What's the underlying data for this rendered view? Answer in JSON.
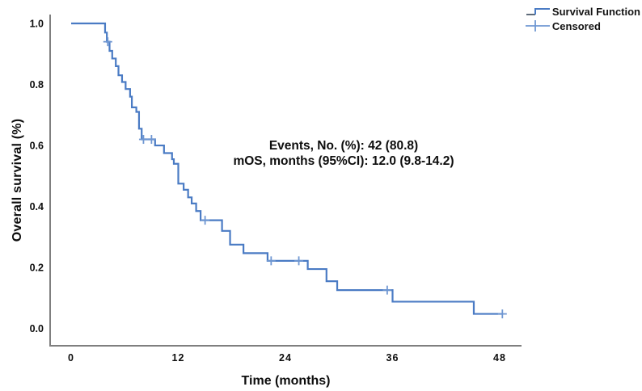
{
  "figure": {
    "ylabel": "Overall survival (%)",
    "xlabel": "Time (months)",
    "annotation": {
      "line1": "Events, No. (%): 42 (80.8)",
      "line2": "mOS, months (95%CI): 12.0 (9.8-14.2)"
    },
    "legend": {
      "survival_label": "Survival Function",
      "censored_label": "Censored"
    }
  },
  "chart_data": {
    "type": "line",
    "subtype": "kaplan-meier-step",
    "title": "",
    "xlabel": "Time (months)",
    "ylabel": "Overall survival (%)",
    "xlim": [
      0,
      48
    ],
    "ylim": [
      0.0,
      1.0
    ],
    "xticks": [
      "0",
      "12",
      "24",
      "36",
      "48"
    ],
    "yticks": [
      "0.0",
      "0.2",
      "0.4",
      "0.6",
      "0.8",
      "1.0"
    ],
    "grid": false,
    "legend_position": "top-right",
    "legend_entries": [
      "Survival Function",
      "Censored"
    ],
    "annotations": [
      "Events, No. (%): 42 (80.8)",
      "mOS, months (95%CI): 12.0 (9.8-14.2)"
    ],
    "stats": {
      "events_n": 42,
      "events_pct": 80.8,
      "median_os_months": 12.0,
      "ci95_low": 9.8,
      "ci95_high": 14.2
    },
    "series": [
      {
        "name": "Survival Function",
        "start": {
          "t": 0.0,
          "s": 1.0
        },
        "steps": [
          [
            3.8,
            0.97
          ],
          [
            4.0,
            0.94
          ],
          [
            4.3,
            0.91
          ],
          [
            4.6,
            0.885
          ],
          [
            5.0,
            0.86
          ],
          [
            5.3,
            0.83
          ],
          [
            5.7,
            0.808
          ],
          [
            6.1,
            0.785
          ],
          [
            6.6,
            0.76
          ],
          [
            6.8,
            0.725
          ],
          [
            7.3,
            0.71
          ],
          [
            7.6,
            0.655
          ],
          [
            7.9,
            0.62
          ],
          [
            9.4,
            0.6
          ],
          [
            10.4,
            0.575
          ],
          [
            11.3,
            0.555
          ],
          [
            11.5,
            0.54
          ],
          [
            12.0,
            0.475
          ],
          [
            12.6,
            0.455
          ],
          [
            13.1,
            0.43
          ],
          [
            13.5,
            0.41
          ],
          [
            14.0,
            0.385
          ],
          [
            14.5,
            0.355
          ],
          [
            16.9,
            0.32
          ],
          [
            17.8,
            0.275
          ],
          [
            19.3,
            0.247
          ],
          [
            22.0,
            0.222
          ],
          [
            26.5,
            0.195
          ],
          [
            28.6,
            0.155
          ],
          [
            29.8,
            0.126
          ],
          [
            36.0,
            0.088
          ],
          [
            45.1,
            0.048
          ]
        ],
        "end_t": 48.3
      }
    ],
    "censored_points": [
      [
        4.1,
        0.94
      ],
      [
        8.1,
        0.62
      ],
      [
        9.0,
        0.62
      ],
      [
        15.0,
        0.355
      ],
      [
        22.4,
        0.222
      ],
      [
        25.5,
        0.222
      ],
      [
        35.4,
        0.126
      ],
      [
        48.3,
        0.048
      ]
    ],
    "colors": {
      "line": "#4a7bc4",
      "censor": "#6f97d2",
      "legend_step_dark": "#5f6b7a",
      "axis": "#7f7f7f",
      "text": "#0d0d0d"
    }
  }
}
